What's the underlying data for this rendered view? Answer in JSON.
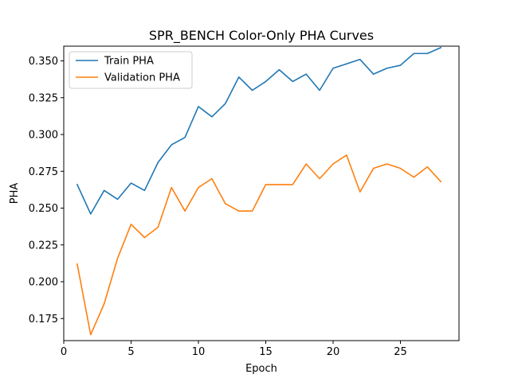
{
  "chart_data": {
    "type": "line",
    "title": "SPR_BENCH Color-Only PHA Curves",
    "xlabel": "Epoch",
    "ylabel": "PHA",
    "xlim": [
      0,
      29.35
    ],
    "ylim": [
      0.16,
      0.36
    ],
    "xticks": [
      0,
      5,
      10,
      15,
      20,
      25
    ],
    "yticks": [
      0.175,
      0.2,
      0.225,
      0.25,
      0.275,
      0.3,
      0.325,
      0.35
    ],
    "ytick_labels": [
      "0.175",
      "0.200",
      "0.225",
      "0.250",
      "0.275",
      "0.300",
      "0.325",
      "0.350"
    ],
    "grid": false,
    "legend_position": "top-left",
    "x": [
      1,
      2,
      3,
      4,
      5,
      6,
      7,
      8,
      9,
      10,
      11,
      12,
      13,
      14,
      15,
      16,
      17,
      18,
      19,
      20,
      21,
      22,
      23,
      24,
      25,
      26,
      27,
      28
    ],
    "series": [
      {
        "name": "Train PHA",
        "color": "#1f77b4",
        "values": [
          0.266,
          0.246,
          0.262,
          0.256,
          0.267,
          0.262,
          0.281,
          0.293,
          0.298,
          0.319,
          0.312,
          0.321,
          0.339,
          0.33,
          0.336,
          0.344,
          0.336,
          0.341,
          0.33,
          0.345,
          0.348,
          0.351,
          0.341,
          0.345,
          0.347,
          0.355,
          0.355,
          0.359
        ]
      },
      {
        "name": "Validation PHA",
        "color": "#ff7f0e",
        "values": [
          0.212,
          0.164,
          0.185,
          0.216,
          0.239,
          0.23,
          0.237,
          0.264,
          0.248,
          0.264,
          0.27,
          0.253,
          0.248,
          0.248,
          0.266,
          0.266,
          0.266,
          0.28,
          0.27,
          0.28,
          0.286,
          0.261,
          0.277,
          0.28,
          0.277,
          0.271,
          0.278,
          0.268
        ]
      }
    ]
  }
}
